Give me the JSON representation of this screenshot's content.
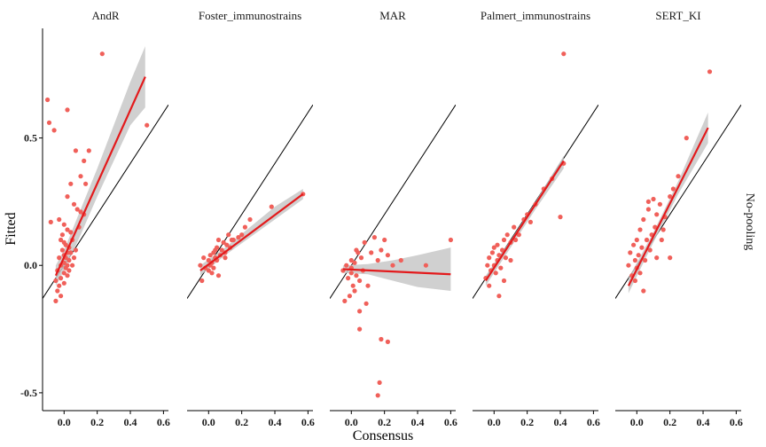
{
  "chart_data": {
    "type": "scatter",
    "xlabel": "Consensus",
    "ylabel": "Fitted",
    "facet_row_label": "No-pooling",
    "x_ticks": [
      0.0,
      0.2,
      0.4,
      0.6
    ],
    "x_tick_labels": [
      "0.0",
      "0.2",
      "0.4",
      "0.6"
    ],
    "y_ticks": [
      -0.5,
      0.0,
      0.5
    ],
    "y_tick_labels": [
      "-0.5",
      "0.0",
      "0.5"
    ],
    "xlim": [
      -0.13,
      0.63
    ],
    "ylim": [
      -0.57,
      0.93
    ],
    "grid": false,
    "reference_line": "identity (y = x)",
    "colors": {
      "points": "#f0605a",
      "fit": "#e31a1c",
      "ribbon": "#c8c8c8",
      "identity": "#000000"
    },
    "panels": [
      {
        "title": "AndR",
        "points": [
          [
            -0.1,
            0.65
          ],
          [
            -0.09,
            0.56
          ],
          [
            0.02,
            0.61
          ],
          [
            -0.06,
            0.53
          ],
          [
            0.07,
            0.45
          ],
          [
            0.15,
            0.45
          ],
          [
            0.12,
            0.41
          ],
          [
            0.1,
            0.35
          ],
          [
            0.04,
            0.32
          ],
          [
            0.13,
            0.32
          ],
          [
            0.23,
            0.83
          ],
          [
            0.5,
            0.55
          ],
          [
            0.02,
            0.27
          ],
          [
            0.06,
            0.24
          ],
          [
            0.08,
            0.22
          ],
          [
            0.1,
            0.21
          ],
          [
            0.12,
            0.2
          ],
          [
            -0.08,
            0.17
          ],
          [
            -0.03,
            0.18
          ],
          [
            0.0,
            0.16
          ],
          [
            0.02,
            0.14
          ],
          [
            0.04,
            0.13
          ],
          [
            0.05,
            0.1
          ],
          [
            -0.02,
            0.1
          ],
          [
            0.0,
            0.09
          ],
          [
            0.01,
            0.08
          ],
          [
            0.03,
            0.07
          ],
          [
            -0.01,
            0.06
          ],
          [
            0.02,
            0.05
          ],
          [
            0.04,
            0.05
          ],
          [
            0.0,
            0.04
          ],
          [
            0.01,
            0.03
          ],
          [
            -0.03,
            0.03
          ],
          [
            0.03,
            0.02
          ],
          [
            0.0,
            0.01
          ],
          [
            -0.02,
            0.0
          ],
          [
            0.02,
            0.0
          ],
          [
            0.01,
            -0.01
          ],
          [
            -0.04,
            -0.02
          ],
          [
            0.0,
            -0.03
          ],
          [
            0.02,
            -0.04
          ],
          [
            -0.02,
            -0.05
          ],
          [
            -0.05,
            -0.06
          ],
          [
            0.0,
            -0.07
          ],
          [
            -0.03,
            -0.08
          ],
          [
            -0.04,
            -0.1
          ],
          [
            -0.02,
            -0.12
          ],
          [
            -0.05,
            -0.14
          ],
          [
            0.05,
            0.0
          ],
          [
            0.06,
            0.03
          ],
          [
            0.03,
            -0.02
          ],
          [
            -0.01,
            0.12
          ],
          [
            0.07,
            0.06
          ],
          [
            0.09,
            0.15
          ]
        ],
        "fit": {
          "x": [
            -0.05,
            0.49
          ],
          "y": [
            -0.04,
            0.74
          ]
        },
        "ribbon": {
          "x": [
            -0.05,
            0.0,
            0.1,
            0.2,
            0.3,
            0.4,
            0.49
          ],
          "upper": [
            0.0,
            0.06,
            0.22,
            0.38,
            0.55,
            0.72,
            0.86
          ],
          "lower": [
            -0.08,
            -0.02,
            0.12,
            0.27,
            0.41,
            0.55,
            0.62
          ]
        }
      },
      {
        "title": "Foster_immunostrains",
        "points": [
          [
            -0.05,
            0.0
          ],
          [
            -0.03,
            0.03
          ],
          [
            -0.02,
            -0.01
          ],
          [
            0.0,
            0.02
          ],
          [
            0.0,
            -0.02
          ],
          [
            0.01,
            0.04
          ],
          [
            0.02,
            0.01
          ],
          [
            0.03,
            0.05
          ],
          [
            0.03,
            -0.01
          ],
          [
            0.04,
            0.03
          ],
          [
            0.05,
            0.07
          ],
          [
            0.05,
            0.02
          ],
          [
            0.06,
            0.1
          ],
          [
            0.07,
            0.04
          ],
          [
            0.08,
            0.06
          ],
          [
            0.09,
            0.09
          ],
          [
            0.1,
            0.05
          ],
          [
            0.11,
            0.08
          ],
          [
            0.12,
            0.12
          ],
          [
            0.13,
            0.07
          ],
          [
            0.15,
            0.1
          ],
          [
            0.18,
            0.11
          ],
          [
            0.2,
            0.12
          ],
          [
            0.22,
            0.15
          ],
          [
            0.25,
            0.18
          ],
          [
            0.38,
            0.23
          ],
          [
            0.57,
            0.28
          ],
          [
            0.06,
            -0.04
          ],
          [
            0.02,
            -0.03
          ],
          [
            -0.04,
            -0.06
          ],
          [
            0.1,
            0.03
          ],
          [
            0.14,
            0.1
          ],
          [
            0.04,
            0.06
          ],
          [
            0.01,
            0.0
          ]
        ],
        "fit": {
          "x": [
            -0.05,
            0.57
          ],
          "y": [
            -0.02,
            0.28
          ]
        },
        "ribbon": {
          "x": [
            -0.05,
            0.1,
            0.25,
            0.4,
            0.57
          ],
          "upper": [
            0.0,
            0.07,
            0.15,
            0.23,
            0.3
          ],
          "lower": [
            -0.04,
            0.04,
            0.11,
            0.18,
            0.26
          ]
        }
      },
      {
        "title": "MAR",
        "points": [
          [
            -0.05,
            -0.02
          ],
          [
            -0.03,
            0.0
          ],
          [
            -0.02,
            -0.05
          ],
          [
            0.0,
            0.02
          ],
          [
            0.0,
            -0.03
          ],
          [
            0.01,
            -0.08
          ],
          [
            0.02,
            0.01
          ],
          [
            0.02,
            -0.1
          ],
          [
            0.03,
            -0.04
          ],
          [
            0.04,
            0.05
          ],
          [
            -0.01,
            -0.12
          ],
          [
            0.05,
            -0.06
          ],
          [
            0.06,
            0.03
          ],
          [
            0.07,
            -0.02
          ],
          [
            0.08,
            0.09
          ],
          [
            0.1,
            -0.08
          ],
          [
            0.12,
            0.05
          ],
          [
            0.14,
            0.11
          ],
          [
            0.16,
            0.02
          ],
          [
            0.18,
            0.06
          ],
          [
            0.2,
            0.1
          ],
          [
            0.22,
            0.04
          ],
          [
            0.25,
            0.0
          ],
          [
            0.3,
            0.02
          ],
          [
            0.45,
            0.0
          ],
          [
            0.6,
            0.1
          ],
          [
            0.05,
            -0.25
          ],
          [
            0.18,
            -0.29
          ],
          [
            0.22,
            -0.3
          ],
          [
            0.17,
            -0.46
          ],
          [
            0.16,
            -0.51
          ],
          [
            0.05,
            -0.18
          ],
          [
            -0.04,
            -0.14
          ],
          [
            0.09,
            -0.15
          ],
          [
            0.03,
            0.06
          ],
          [
            0.0,
            -0.01
          ]
        ],
        "fit": {
          "x": [
            -0.05,
            0.6
          ],
          "y": [
            -0.015,
            -0.035
          ]
        },
        "ribbon": {
          "x": [
            -0.05,
            0.1,
            0.25,
            0.4,
            0.6
          ],
          "upper": [
            0.0,
            0.005,
            0.02,
            0.04,
            0.07
          ],
          "lower": [
            -0.03,
            -0.035,
            -0.06,
            -0.085,
            -0.1
          ]
        }
      },
      {
        "title": "Palmert_immunostrains",
        "points": [
          [
            -0.05,
            -0.05
          ],
          [
            -0.04,
            0.0
          ],
          [
            -0.03,
            0.03
          ],
          [
            -0.02,
            -0.02
          ],
          [
            -0.01,
            0.05
          ],
          [
            0.0,
            0.0
          ],
          [
            0.0,
            0.07
          ],
          [
            0.01,
            -0.03
          ],
          [
            0.02,
            0.02
          ],
          [
            0.02,
            0.08
          ],
          [
            0.03,
            0.04
          ],
          [
            0.04,
            -0.01
          ],
          [
            0.05,
            0.06
          ],
          [
            0.06,
            0.1
          ],
          [
            0.07,
            0.03
          ],
          [
            0.08,
            0.12
          ],
          [
            0.1,
            0.09
          ],
          [
            0.12,
            0.15
          ],
          [
            0.15,
            0.12
          ],
          [
            0.18,
            0.18
          ],
          [
            0.2,
            0.2
          ],
          [
            0.22,
            0.17
          ],
          [
            0.25,
            0.24
          ],
          [
            0.3,
            0.3
          ],
          [
            0.35,
            0.34
          ],
          [
            0.42,
            0.4
          ],
          [
            0.4,
            0.19
          ],
          [
            0.42,
            0.83
          ],
          [
            0.03,
            -0.12
          ],
          [
            -0.03,
            -0.08
          ],
          [
            0.06,
            -0.06
          ],
          [
            0.1,
            0.02
          ],
          [
            0.13,
            0.1
          ]
        ],
        "fit": {
          "x": [
            -0.05,
            0.42
          ],
          "y": [
            -0.06,
            0.41
          ]
        },
        "ribbon": {
          "x": [
            -0.05,
            0.1,
            0.25,
            0.42
          ],
          "upper": [
            -0.04,
            0.1,
            0.25,
            0.43
          ],
          "lower": [
            -0.08,
            0.07,
            0.22,
            0.38
          ]
        }
      },
      {
        "title": "SERT_KI",
        "points": [
          [
            -0.05,
            0.0
          ],
          [
            -0.04,
            0.05
          ],
          [
            -0.03,
            -0.04
          ],
          [
            -0.02,
            0.08
          ],
          [
            -0.01,
            0.02
          ],
          [
            0.0,
            -0.01
          ],
          [
            0.0,
            0.1
          ],
          [
            0.01,
            0.04
          ],
          [
            0.02,
            0.14
          ],
          [
            0.02,
            -0.03
          ],
          [
            0.03,
            0.07
          ],
          [
            0.04,
            0.18
          ],
          [
            0.05,
            0.02
          ],
          [
            0.06,
            0.1
          ],
          [
            0.07,
            0.22
          ],
          [
            0.08,
            0.06
          ],
          [
            0.09,
            0.12
          ],
          [
            0.1,
            0.26
          ],
          [
            0.11,
            0.15
          ],
          [
            0.12,
            0.2
          ],
          [
            0.14,
            0.24
          ],
          [
            0.15,
            0.1
          ],
          [
            0.17,
            0.19
          ],
          [
            0.2,
            0.27
          ],
          [
            0.22,
            0.3
          ],
          [
            0.25,
            0.35
          ],
          [
            0.3,
            0.5
          ],
          [
            0.44,
            0.76
          ],
          [
            0.12,
            0.03
          ],
          [
            0.04,
            -0.1
          ],
          [
            -0.01,
            -0.06
          ],
          [
            0.07,
            0.25
          ],
          [
            0.16,
            0.14
          ],
          [
            0.2,
            0.03
          ]
        ],
        "fit": {
          "x": [
            -0.05,
            0.43
          ],
          "y": [
            -0.08,
            0.54
          ]
        },
        "ribbon": {
          "x": [
            -0.05,
            0.1,
            0.25,
            0.43
          ],
          "upper": [
            -0.05,
            0.13,
            0.33,
            0.6
          ],
          "lower": [
            -0.11,
            0.09,
            0.28,
            0.48
          ]
        }
      }
    ]
  }
}
